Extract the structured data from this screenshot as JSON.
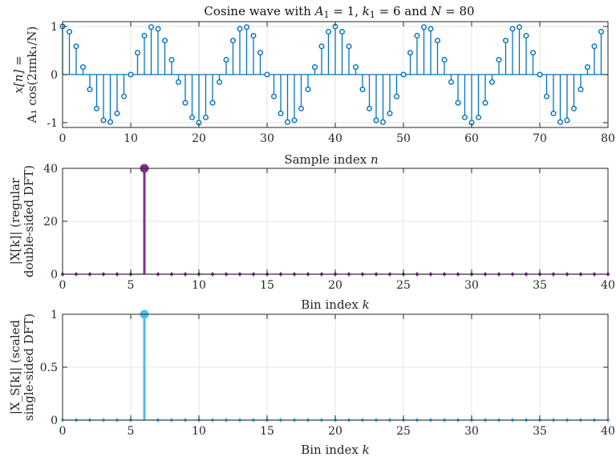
{
  "chart_data": [
    {
      "type": "stem",
      "title": "Cosine wave with A₁ = 1, k₁ = 6 and N = 80",
      "title_parts": {
        "t1": "Cosine wave with ",
        "A": "A",
        "A_sub": "1",
        "eq1": " = 1, ",
        "k": "k",
        "k_sub": "1",
        "eq2": " = 6 and ",
        "N": "N",
        "eq3": " = 80"
      },
      "xlabel": "Sample index n",
      "xlabel_parts": {
        "text": "Sample index ",
        "var": "n"
      },
      "ylabel_line1": "x[n] =",
      "ylabel_line2": "A₁ cos(2πnk₁/N)",
      "xlim": [
        0,
        80
      ],
      "ylim": [
        -1.1,
        1.1
      ],
      "xticks": [
        "0",
        "10",
        "20",
        "30",
        "40",
        "50",
        "60",
        "70",
        "80"
      ],
      "yticks": [
        "-1",
        "0",
        "1"
      ],
      "amplitude": 1,
      "bin": 6,
      "length": 80,
      "color": "#0072BD"
    },
    {
      "type": "stem",
      "xlabel": "Bin index k",
      "xlabel_parts": {
        "text": "Bin index ",
        "var": "k"
      },
      "ylabel_line1": "|X[k]| (regular",
      "ylabel_line2": "double-sided DFT)",
      "xlim": [
        0,
        40
      ],
      "ylim": [
        0,
        40
      ],
      "xticks": [
        "0",
        "5",
        "10",
        "15",
        "20",
        "25",
        "30",
        "35",
        "40"
      ],
      "yticks": [
        "0",
        "20",
        "40"
      ],
      "bins": 40,
      "peak_bin": 6,
      "peak_value": 40,
      "color": "#7E2F8E"
    },
    {
      "type": "stem",
      "xlabel": "Bin index k",
      "xlabel_parts": {
        "text": "Bin index ",
        "var": "k"
      },
      "ylabel_line1": "|X_S[k]| (scaled",
      "ylabel_line2": "single-sided DFT)",
      "xlim": [
        0,
        40
      ],
      "ylim": [
        0,
        1
      ],
      "xticks": [
        "0",
        "5",
        "10",
        "15",
        "20",
        "25",
        "30",
        "35",
        "40"
      ],
      "yticks": [
        "0",
        "0.5",
        "1"
      ],
      "bins": 40,
      "peak_bin": 6,
      "peak_value": 1,
      "color": "#4DBEEE"
    }
  ]
}
